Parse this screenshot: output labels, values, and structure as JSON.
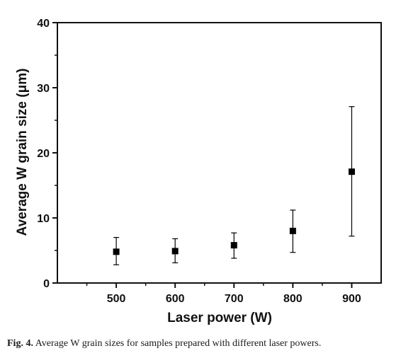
{
  "caption": {
    "label": "Fig. 4.",
    "text": "Average W grain sizes for samples prepared with different laser powers."
  },
  "chart_data": {
    "type": "scatter",
    "xlabel": "Laser power (W)",
    "ylabel": "Average W grain size (μm)",
    "xlim": [
      400,
      950
    ],
    "ylim": [
      0,
      40
    ],
    "xticks": [
      500,
      600,
      700,
      800,
      900
    ],
    "yticks": [
      0,
      10,
      20,
      30,
      40
    ],
    "grid": false,
    "series": [
      {
        "marker": "square",
        "color": "#000000",
        "points": [
          {
            "x": 500,
            "y": 4.8,
            "err_low": 2.8,
            "err_high": 7.0
          },
          {
            "x": 600,
            "y": 4.9,
            "err_low": 3.1,
            "err_high": 6.8
          },
          {
            "x": 700,
            "y": 5.8,
            "err_low": 3.8,
            "err_high": 7.7
          },
          {
            "x": 800,
            "y": 8.0,
            "err_low": 4.7,
            "err_high": 11.2
          },
          {
            "x": 900,
            "y": 17.1,
            "err_low": 7.2,
            "err_high": 27.1
          }
        ]
      }
    ]
  }
}
